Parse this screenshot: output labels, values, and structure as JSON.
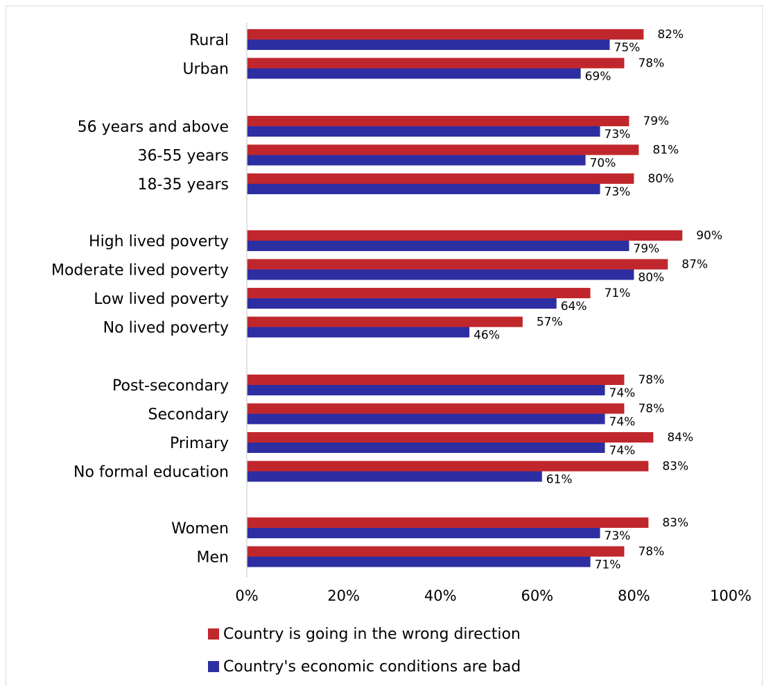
{
  "chart_data": {
    "type": "bar",
    "orientation": "horizontal",
    "title": "",
    "xlabel": "",
    "ylabel": "",
    "xlim": [
      0,
      100
    ],
    "x_ticks": [
      "0%",
      "20%",
      "40%",
      "60%",
      "80%",
      "100%"
    ],
    "grid": false,
    "legend_position": "bottom",
    "categories": [
      "Rural",
      "Urban",
      "56 years and above",
      "36-55 years",
      "18-35 years",
      "High lived poverty",
      "Moderate lived poverty",
      "Low lived poverty",
      "No lived poverty",
      "Post-secondary",
      "Secondary",
      "Primary",
      "No formal education",
      "Women",
      "Men"
    ],
    "series": [
      {
        "name": "Country is going in the wrong direction",
        "color": "#c0272d",
        "values": [
          82,
          78,
          79,
          81,
          80,
          90,
          87,
          71,
          57,
          78,
          78,
          84,
          83,
          83,
          78
        ]
      },
      {
        "name": "Country's economic conditions are bad",
        "color": "#2e2ea3",
        "values": [
          75,
          69,
          73,
          70,
          73,
          79,
          80,
          64,
          46,
          74,
          74,
          74,
          61,
          73,
          71
        ]
      }
    ],
    "value_suffix": "%"
  }
}
